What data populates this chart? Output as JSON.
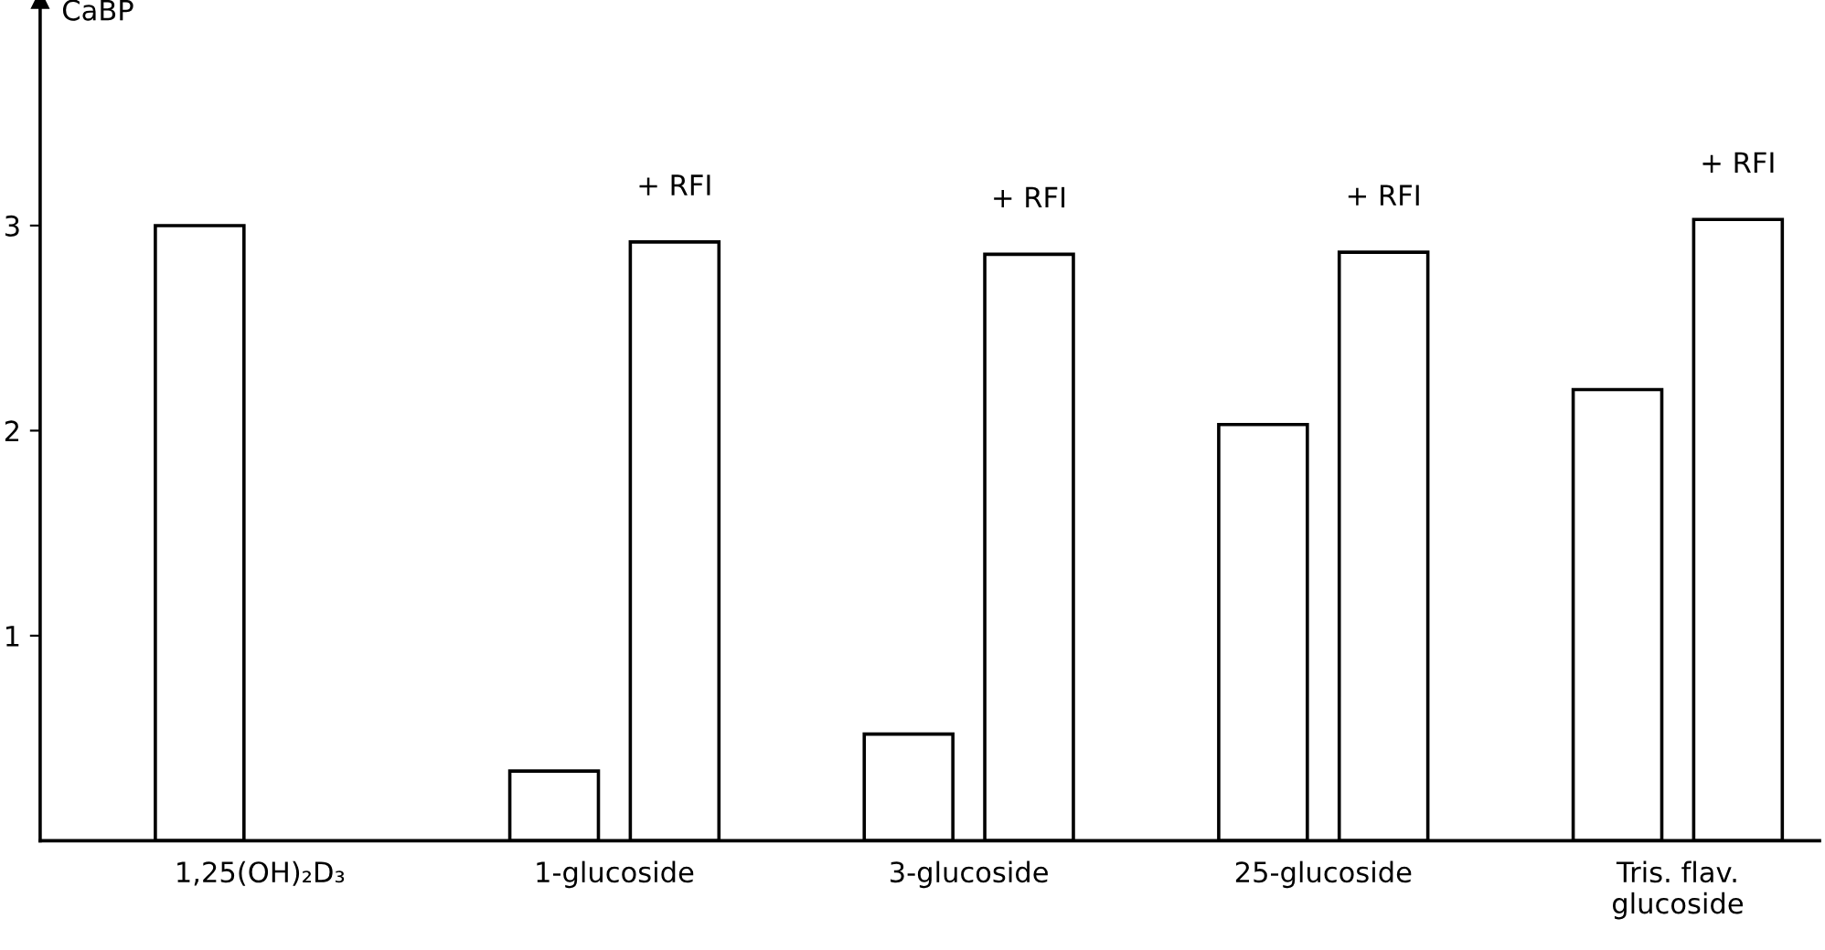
{
  "chart_data": {
    "type": "bar",
    "ylabel": "CaBP",
    "categories": [
      "1,25(OH)₂D₃",
      "1-glucoside",
      "3-glucoside",
      "25-glucoside",
      "Tris. flav.\nglucoside"
    ],
    "series": [
      {
        "color": "#ffffff",
        "values": [
          3.0,
          0.34,
          0.52,
          2.03,
          2.2
        ]
      },
      {
        "name": "+ RFI",
        "color": "#ffffff",
        "values": [
          null,
          2.92,
          2.86,
          2.87,
          3.03
        ]
      }
    ],
    "ylim": [
      0,
      4.1
    ],
    "yticks": [
      1,
      2,
      3
    ],
    "grid": false,
    "legend": false
  }
}
